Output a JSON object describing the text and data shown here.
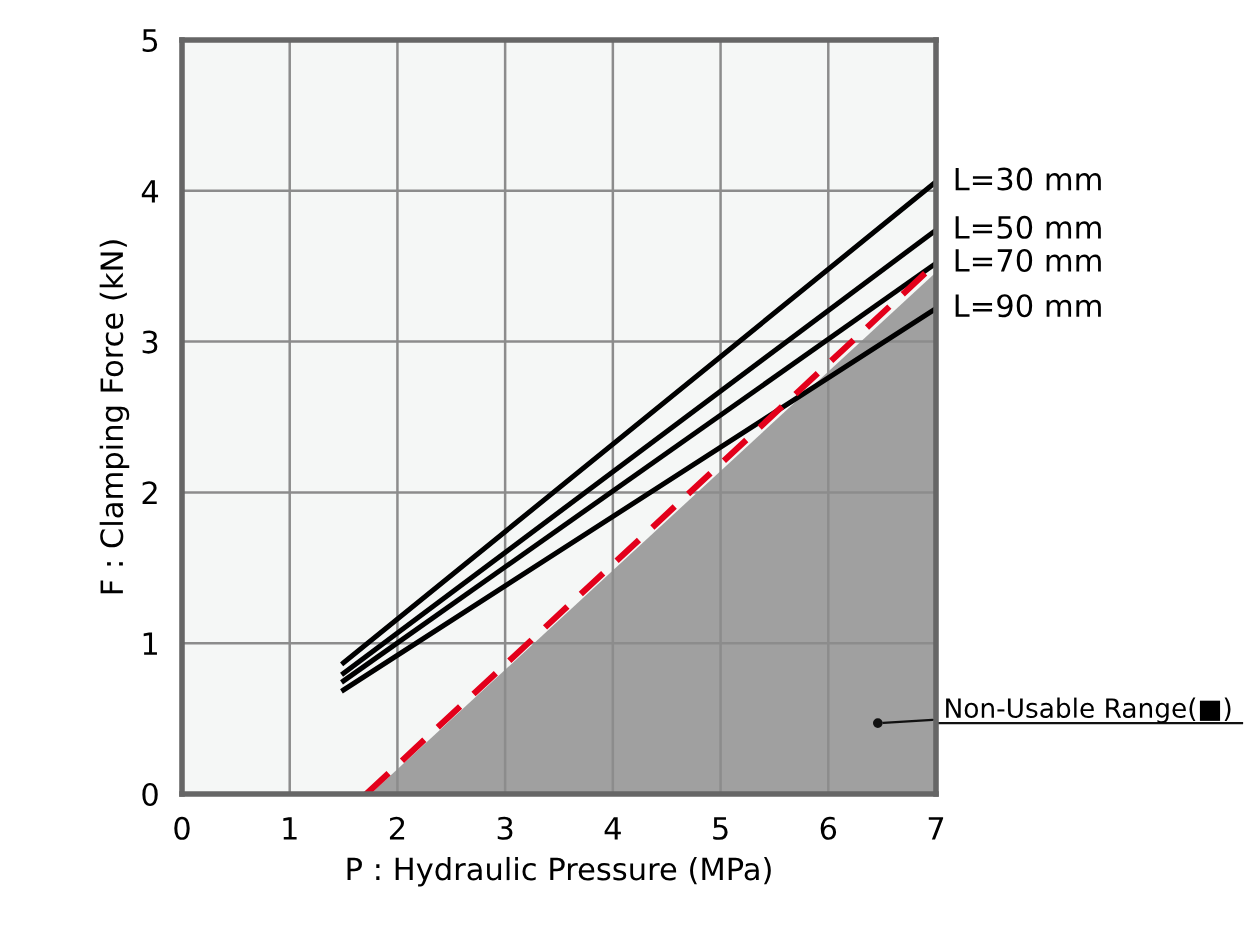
{
  "chart_data": {
    "type": "line",
    "xlabel": "P : Hydraulic Pressure (MPa)",
    "ylabel": "F : Clamping Force (kN)",
    "xlim": [
      0,
      7
    ],
    "ylim": [
      0,
      5
    ],
    "xticks": [
      0,
      1,
      2,
      3,
      4,
      5,
      6,
      7
    ],
    "yticks": [
      0,
      1,
      2,
      3,
      4,
      5
    ],
    "grid": true,
    "series": [
      {
        "type": "area",
        "x": [
          1.75,
          7
        ],
        "values": [
          0,
          3.46
        ],
        "color": "#a0a0a0"
      },
      {
        "name": "L=30 mm",
        "x": [
          1.5,
          7
        ],
        "values": [
          0.87,
          4.06
        ],
        "color": "#000000"
      },
      {
        "name": "L=50 mm",
        "x": [
          1.5,
          7
        ],
        "values": [
          0.8,
          3.74
        ],
        "color": "#000000"
      },
      {
        "name": "L=70 mm",
        "x": [
          1.5,
          7
        ],
        "values": [
          0.75,
          3.52
        ],
        "color": "#000000"
      },
      {
        "name": "L=90 mm",
        "x": [
          1.5,
          7
        ],
        "values": [
          0.69,
          3.22
        ],
        "color": "#000000"
      },
      {
        "x": [
          1.71,
          7
        ],
        "values": [
          0,
          3.52
        ],
        "color": "#e3001b",
        "line_style": "dashed"
      }
    ],
    "annotations": [
      {
        "text": "Non-Usable Range(■)",
        "x": 6.46,
        "y": 0.47
      }
    ]
  }
}
